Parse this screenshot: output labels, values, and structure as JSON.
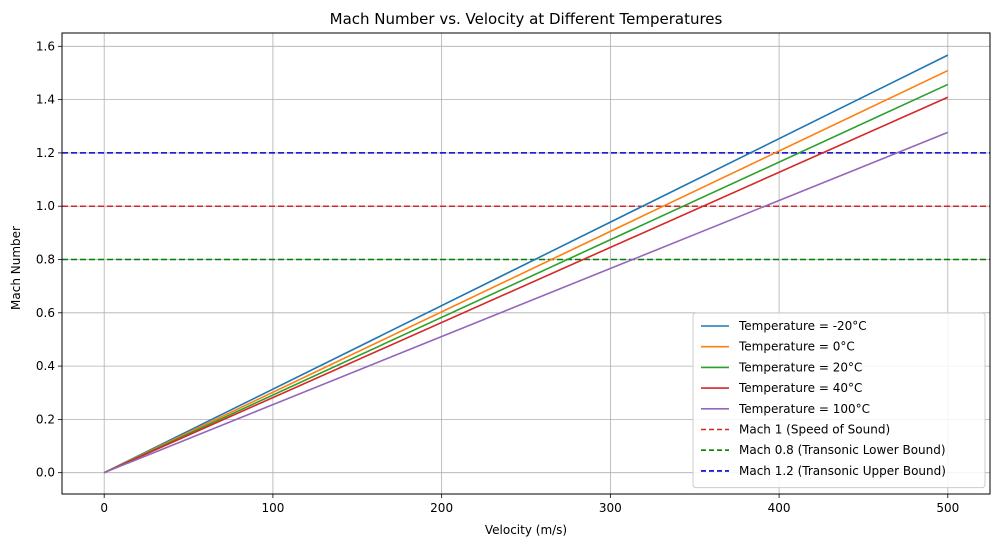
{
  "chart_data": {
    "type": "line",
    "title": "Mach Number vs. Velocity at Different Temperatures",
    "xlabel": "Velocity (m/s)",
    "ylabel": "Mach Number",
    "xlim": [
      -25,
      525
    ],
    "ylim": [
      -0.08,
      1.65
    ],
    "xticks": [
      0,
      100,
      200,
      300,
      400,
      500
    ],
    "xtick_labels": [
      "0",
      "100",
      "200",
      "300",
      "400",
      "500"
    ],
    "yticks": [
      0.0,
      0.2,
      0.4,
      0.6,
      0.8,
      1.0,
      1.2,
      1.4,
      1.6
    ],
    "ytick_labels": [
      "0.0",
      "0.2",
      "0.4",
      "0.6",
      "0.8",
      "1.0",
      "1.2",
      "1.4",
      "1.6"
    ],
    "grid": true,
    "legend_position": "lower-right",
    "series": [
      {
        "name": "Temperature = -20°C",
        "color": "#1f77b4",
        "style": "solid",
        "x": [
          0,
          500
        ],
        "y": [
          0.0,
          1.567
        ]
      },
      {
        "name": "Temperature = 0°C",
        "color": "#ff7f0e",
        "style": "solid",
        "x": [
          0,
          500
        ],
        "y": [
          0.0,
          1.509
        ]
      },
      {
        "name": "Temperature = 20°C",
        "color": "#2ca02c",
        "style": "solid",
        "x": [
          0,
          500
        ],
        "y": [
          0.0,
          1.457
        ]
      },
      {
        "name": "Temperature = 40°C",
        "color": "#d62728",
        "style": "solid",
        "x": [
          0,
          500
        ],
        "y": [
          0.0,
          1.409
        ]
      },
      {
        "name": "Temperature = 100°C",
        "color": "#9467bd",
        "style": "solid",
        "x": [
          0,
          500
        ],
        "y": [
          0.0,
          1.277
        ]
      }
    ],
    "reference_lines": [
      {
        "name": "Mach 1 (Speed of Sound)",
        "color": "#d62728",
        "style": "dashed",
        "y": 1.0
      },
      {
        "name": "Mach 0.8 (Transonic Lower Bound)",
        "color": "#008000",
        "style": "dashed",
        "y": 0.8
      },
      {
        "name": "Mach 1.2 (Transonic Upper Bound)",
        "color": "#0000cc",
        "style": "dashed",
        "y": 1.2
      }
    ]
  }
}
